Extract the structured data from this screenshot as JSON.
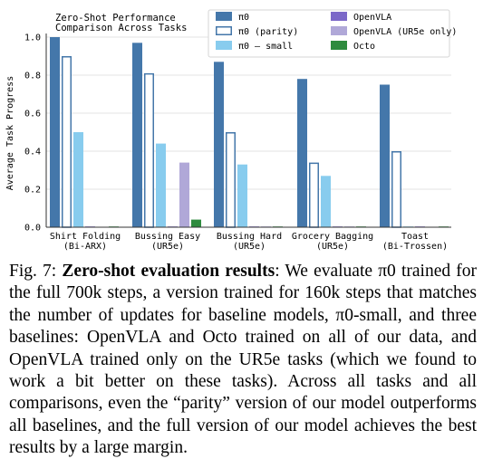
{
  "chart_data": {
    "type": "bar",
    "title": "Zero-Shot Performance\nComparison Across Tasks",
    "ylabel": "Average Task Progress",
    "xlabel": "",
    "ylim": [
      0,
      1.0
    ],
    "yticks": [
      "0.0",
      "0.2",
      "0.4",
      "0.6",
      "0.8",
      "1.0"
    ],
    "grid": "horizontal",
    "legend_position": "top-right",
    "categories": [
      [
        "Shirt Folding",
        "(Bi-ARX)"
      ],
      [
        "Bussing Easy",
        "(UR5e)"
      ],
      [
        "Bussing Hard",
        "(UR5e)"
      ],
      [
        "Grocery Bagging",
        "(UR5e)"
      ],
      [
        "Toast",
        "(Bi-Trossen)"
      ]
    ],
    "series": [
      {
        "name": "π0",
        "color": "#4477aa",
        "style": "filled",
        "values": [
          1.0,
          0.97,
          0.87,
          0.78,
          0.75
        ]
      },
      {
        "name": "π0 (parity)",
        "color": "#4477aa",
        "style": "outline",
        "values": [
          0.9,
          0.81,
          0.5,
          0.34,
          0.4
        ]
      },
      {
        "name": "π0 – small",
        "color": "#88ccee",
        "style": "filled",
        "values": [
          0.5,
          0.44,
          0.33,
          0.27,
          0.0
        ]
      },
      {
        "name": "OpenVLA",
        "color": "#7b68c8",
        "style": "filled",
        "values": [
          0.0,
          0.0,
          0.0,
          0.0,
          0.0
        ]
      },
      {
        "name": "OpenVLA (UR5e only)",
        "color": "#b0a8d8",
        "style": "filled",
        "values": [
          null,
          0.34,
          0.0,
          0.0,
          null
        ]
      },
      {
        "name": "Octo",
        "color": "#2e8b3e",
        "style": "filled",
        "values": [
          0.0,
          0.04,
          0.0,
          0.0,
          0.0
        ]
      }
    ]
  },
  "caption": {
    "label": "Fig. 7:",
    "bold": "Zero-shot evaluation results",
    "text": ": We evaluate π0 trained for the full 700k steps, a version trained for 160k steps that matches the number of updates for baseline models, π0-small, and three baselines: OpenVLA and Octo trained on all of our data, and OpenVLA trained only on the UR5e tasks (which we found to work a bit better on these tasks). Across all tasks and all comparisons, even the “parity” version of our model outperforms all baselines, and the full version of our model achieves the best results by a large margin."
  }
}
